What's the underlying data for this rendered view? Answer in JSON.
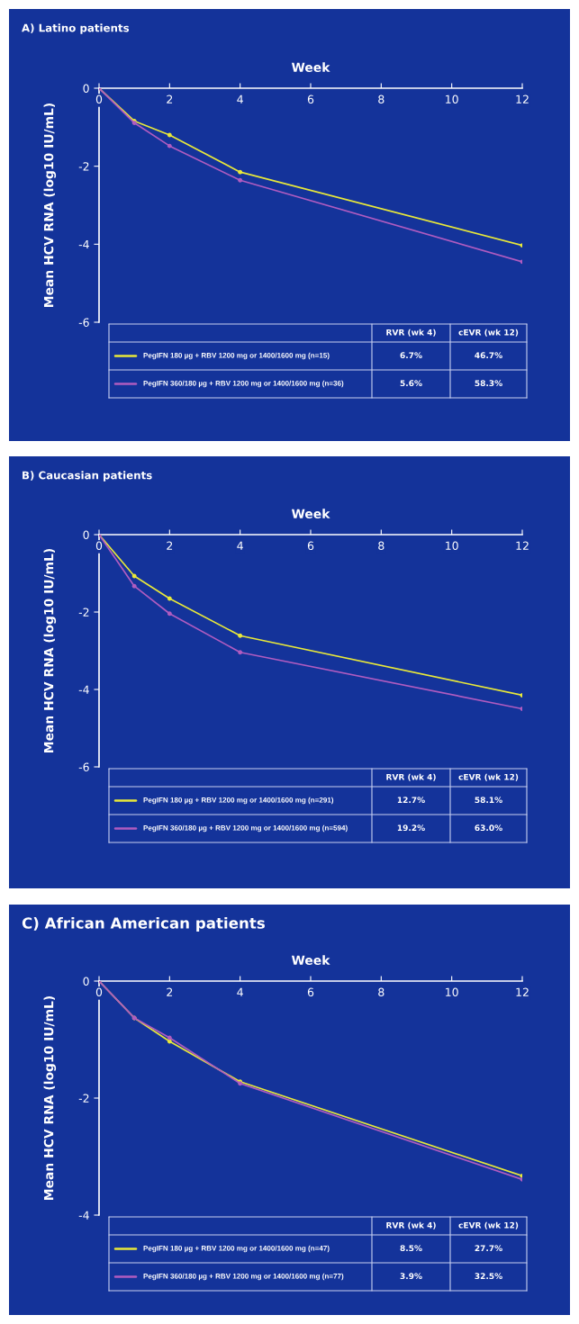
{
  "chart_data": [
    {
      "type": "line",
      "title": "A) Latino patients",
      "xlabel": "Week",
      "ylabel": "Mean HCV RNA (log10 IU/mL)",
      "xlim": [
        0,
        12
      ],
      "xticks": [
        0,
        2,
        4,
        6,
        8,
        10,
        12
      ],
      "ylim": [
        -6,
        0
      ],
      "yticks": [
        0,
        -2,
        -4,
        -6
      ],
      "grid": false,
      "legend": "bottom",
      "marker": "circle",
      "line_style": "solid",
      "series": [
        {
          "name": "PegIFN 180 µg + RBV 1200 mg or 1400/1600 mg (n=15)",
          "color": "#e8e83a",
          "x": [
            0,
            1,
            2,
            4,
            12
          ],
          "values": [
            0,
            -0.84,
            -1.2,
            -2.15,
            -4.03
          ]
        },
        {
          "name": "PegIFN 360/180 µg + RBV 1200 mg or 1400/1600 mg (n=36)",
          "color": "#b05cc0",
          "x": [
            0,
            1,
            2,
            4,
            12
          ],
          "values": [
            0,
            -0.89,
            -1.48,
            -2.36,
            -4.45
          ]
        }
      ],
      "annotations": [
        "RVR (wk 4)",
        "cEVR (wk 12)",
        "6.7%",
        "46.7%",
        "5.6%",
        "58.3%"
      ]
    },
    {
      "type": "line",
      "title": "B) Caucasian patients",
      "xlabel": "Week",
      "ylabel": "Mean HCV RNA (log10 IU/mL)",
      "xlim": [
        0,
        12
      ],
      "xticks": [
        0,
        2,
        4,
        6,
        8,
        10,
        12
      ],
      "ylim": [
        -6,
        0
      ],
      "yticks": [
        0,
        -2,
        -4,
        -6
      ],
      "grid": false,
      "legend": "bottom",
      "marker": "circle",
      "line_style": "solid",
      "series": [
        {
          "name": "PegIFN 180 µg + RBV 1200 mg or 1400/1600 mg (n=291)",
          "color": "#e8e83a",
          "x": [
            0,
            1,
            2,
            4,
            12
          ],
          "values": [
            0,
            -1.07,
            -1.65,
            -2.61,
            -4.15
          ]
        },
        {
          "name": "PegIFN 360/180 µg + RBV 1200 mg or 1400/1600 mg (n=594)",
          "color": "#b05cc0",
          "x": [
            0,
            1,
            2,
            4,
            12
          ],
          "values": [
            0,
            -1.33,
            -2.04,
            -3.04,
            -4.5
          ]
        }
      ],
      "annotations": [
        "RVR (wk 4)",
        "cEVR (wk 12)",
        "12.7%",
        "58.1%",
        "19.2%",
        "63.0%"
      ]
    },
    {
      "type": "line",
      "title": "C) African American patients",
      "xlabel": "Week",
      "ylabel": "Mean HCV RNA (log10 IU/mL)",
      "xlim": [
        0,
        12
      ],
      "xticks": [
        0,
        2,
        4,
        6,
        8,
        10,
        12
      ],
      "ylim": [
        -4,
        0
      ],
      "yticks": [
        0,
        -2,
        -4
      ],
      "grid": false,
      "legend": "bottom",
      "marker": "circle",
      "line_style": "solid",
      "series": [
        {
          "name": "PegIFN 180 µg + RBV 1200 mg or 1400/1600 mg (n=47)",
          "color": "#e8e83a",
          "x": [
            0,
            1,
            2,
            4,
            12
          ],
          "values": [
            0,
            -0.63,
            -1.03,
            -1.72,
            -3.33
          ]
        },
        {
          "name": "PegIFN 360/180 µg + RBV 1200 mg or 1400/1600 mg (n=77)",
          "color": "#b05cc0",
          "x": [
            0,
            1,
            2,
            4,
            12
          ],
          "values": [
            0,
            -0.63,
            -0.97,
            -1.75,
            -3.39
          ]
        }
      ],
      "annotations": [
        "RVR (wk 4)",
        "cEVR (wk 12)",
        "8.5%",
        "27.7%",
        "3.9%",
        "32.5%"
      ]
    }
  ]
}
